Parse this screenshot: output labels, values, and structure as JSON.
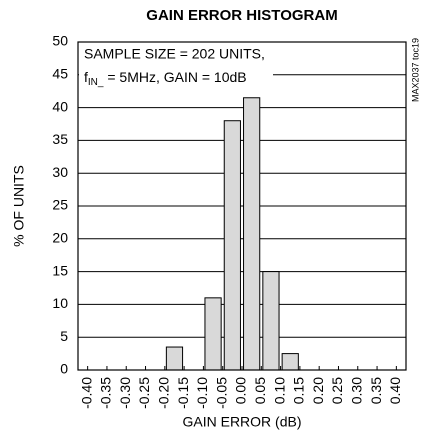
{
  "chart_data": {
    "type": "histogram",
    "title": "GAIN ERROR HISTOGRAM",
    "xlabel": "GAIN ERROR (dB)",
    "ylabel": "% OF UNITS",
    "annotation": {
      "line1": "SAMPLE SIZE = 202 UNITS,",
      "line2_main": "f",
      "line2_sub": "IN_",
      "line2_rest": " = 5MHz, GAIN = 10dB"
    },
    "side_note": "MAX2037 toc19",
    "bins": [
      -0.4,
      -0.35,
      -0.3,
      -0.25,
      -0.2,
      -0.15,
      -0.1,
      -0.05,
      0,
      0.05,
      0.1,
      0.15,
      0.2,
      0.25,
      0.3,
      0.35,
      0.4
    ],
    "values": [
      0,
      0,
      0,
      0,
      3.5,
      0,
      11,
      38,
      41.5,
      15,
      2.5,
      0,
      0,
      0,
      0,
      0
    ],
    "color": "#d9d9d9",
    "xlim": [
      -0.425,
      0.425
    ],
    "xticks": [
      {
        "value": -0.4,
        "label": "-0.40"
      },
      -0.35,
      {
        "value": -0.3,
        "label": "-0.30"
      },
      -0.25,
      {
        "value": -0.2,
        "label": "-0.20"
      },
      -0.15,
      {
        "value": -0.1,
        "label": "-0.10"
      },
      -0.05,
      {
        "value": 0,
        "label": "0.00"
      },
      0.05,
      {
        "value": 0.1,
        "label": "0.10"
      },
      0.15,
      {
        "value": 0.2,
        "label": "0.20"
      },
      0.25,
      {
        "value": 0.3,
        "label": "0.30"
      },
      0.35,
      {
        "value": 0.4,
        "label": "0.40"
      }
    ],
    "ylim": [
      0,
      50
    ],
    "yticks": [
      0,
      5,
      10,
      15,
      20,
      25,
      30,
      35,
      40,
      45,
      50
    ],
    "grid": true
  }
}
